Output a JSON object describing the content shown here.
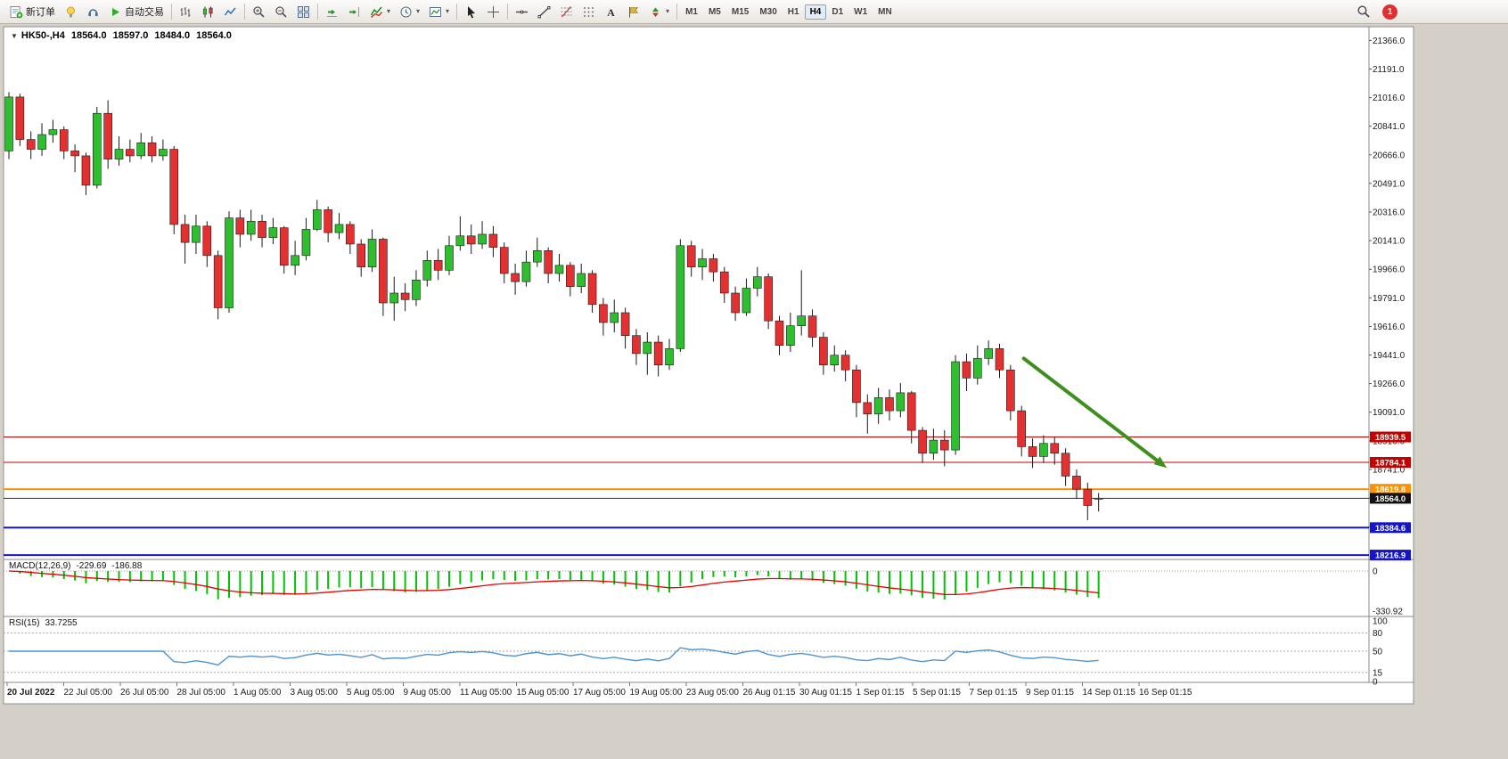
{
  "toolbar": {
    "new_order_label": "新订单",
    "autotrading_label": "自动交易",
    "caret": "▾",
    "timeframes": [
      "M1",
      "M5",
      "M15",
      "M30",
      "H1",
      "H4",
      "D1",
      "W1",
      "MN"
    ],
    "active_timeframe": "H4",
    "notification_count": "1"
  },
  "chart": {
    "collapse_glyph": "▼",
    "symbol_period": "HK50-,H4",
    "open": "18564.0",
    "high": "18597.0",
    "low": "18484.0",
    "close": "18564.0"
  },
  "colors": {
    "bull": "#2fbe2f",
    "bear": "#e33030",
    "wick": "#1a1a1a",
    "macd_bar": "#00c400",
    "macd_signal": "#e80000",
    "rsi_line": "#4f94cd",
    "arrow": "#3f8f1f",
    "axis_text": "#1a1a1a"
  },
  "chart_data": {
    "type": "candlestick",
    "title": "HK50-,H4",
    "price_axis": {
      "range": [
        18190,
        21450
      ],
      "ticks": [
        "21366.0",
        "21191.0",
        "21016.0",
        "20841.0",
        "20666.0",
        "20491.0",
        "20316.0",
        "20141.0",
        "19966.0",
        "19791.0",
        "19616.0",
        "19441.0",
        "19266.0",
        "19091.0",
        "18916.0",
        "18741.0",
        "18566.0",
        "18391.0"
      ]
    },
    "candles_ohlc": [
      [
        20690,
        21050,
        20640,
        21020
      ],
      [
        21020,
        21040,
        20720,
        20760
      ],
      [
        20760,
        20810,
        20640,
        20700
      ],
      [
        20700,
        20860,
        20660,
        20790
      ],
      [
        20790,
        20880,
        20740,
        20820
      ],
      [
        20820,
        20840,
        20640,
        20690
      ],
      [
        20690,
        20730,
        20560,
        20660
      ],
      [
        20660,
        20680,
        20420,
        20480
      ],
      [
        20480,
        20960,
        20460,
        20920
      ],
      [
        20920,
        21000,
        20580,
        20640
      ],
      [
        20640,
        20780,
        20600,
        20700
      ],
      [
        20700,
        20760,
        20620,
        20660
      ],
      [
        20660,
        20800,
        20640,
        20740
      ],
      [
        20740,
        20780,
        20620,
        20660
      ],
      [
        20660,
        20760,
        20630,
        20700
      ],
      [
        20700,
        20720,
        20180,
        20240
      ],
      [
        20240,
        20300,
        20000,
        20130
      ],
      [
        20130,
        20300,
        20060,
        20230
      ],
      [
        20230,
        20260,
        19980,
        20050
      ],
      [
        20050,
        20080,
        19660,
        19730
      ],
      [
        19730,
        20320,
        19700,
        20280
      ],
      [
        20280,
        20330,
        20100,
        20180
      ],
      [
        20180,
        20330,
        20140,
        20260
      ],
      [
        20260,
        20300,
        20100,
        20160
      ],
      [
        20160,
        20280,
        20120,
        20220
      ],
      [
        20220,
        20230,
        19940,
        19990
      ],
      [
        19990,
        20140,
        19930,
        20050
      ],
      [
        20050,
        20280,
        20020,
        20210
      ],
      [
        20210,
        20390,
        20200,
        20330
      ],
      [
        20330,
        20350,
        20130,
        20190
      ],
      [
        20190,
        20310,
        20150,
        20240
      ],
      [
        20240,
        20260,
        20060,
        20120
      ],
      [
        20120,
        20150,
        19920,
        19980
      ],
      [
        19980,
        20210,
        19950,
        20150
      ],
      [
        20150,
        20160,
        19680,
        19760
      ],
      [
        19760,
        19920,
        19650,
        19820
      ],
      [
        19820,
        19880,
        19710,
        19780
      ],
      [
        19780,
        19960,
        19740,
        19900
      ],
      [
        19900,
        20080,
        19860,
        20020
      ],
      [
        20020,
        20090,
        19900,
        19960
      ],
      [
        19960,
        20170,
        19930,
        20110
      ],
      [
        20110,
        20290,
        20080,
        20170
      ],
      [
        20170,
        20240,
        20060,
        20120
      ],
      [
        20120,
        20260,
        20090,
        20180
      ],
      [
        20180,
        20230,
        20040,
        20100
      ],
      [
        20100,
        20130,
        19880,
        19940
      ],
      [
        19940,
        20000,
        19810,
        19890
      ],
      [
        19890,
        20080,
        19860,
        20010
      ],
      [
        20010,
        20160,
        19980,
        20080
      ],
      [
        20080,
        20100,
        19880,
        19940
      ],
      [
        19940,
        20060,
        19890,
        19990
      ],
      [
        19990,
        20010,
        19800,
        19860
      ],
      [
        19860,
        20000,
        19820,
        19940
      ],
      [
        19940,
        19960,
        19700,
        19750
      ],
      [
        19750,
        19790,
        19560,
        19640
      ],
      [
        19640,
        19780,
        19580,
        19700
      ],
      [
        19700,
        19730,
        19480,
        19560
      ],
      [
        19560,
        19600,
        19380,
        19450
      ],
      [
        19450,
        19580,
        19320,
        19520
      ],
      [
        19520,
        19560,
        19310,
        19380
      ],
      [
        19380,
        19540,
        19350,
        19480
      ],
      [
        19480,
        20150,
        19460,
        20110
      ],
      [
        20110,
        20140,
        19920,
        19980
      ],
      [
        19980,
        20090,
        19900,
        20030
      ],
      [
        20030,
        20060,
        19890,
        19950
      ],
      [
        19950,
        19980,
        19760,
        19820
      ],
      [
        19820,
        19860,
        19650,
        19700
      ],
      [
        19700,
        19910,
        19680,
        19850
      ],
      [
        19850,
        19980,
        19800,
        19920
      ],
      [
        19920,
        19940,
        19600,
        19650
      ],
      [
        19650,
        19680,
        19440,
        19500
      ],
      [
        19500,
        19700,
        19460,
        19620
      ],
      [
        19620,
        19960,
        19560,
        19680
      ],
      [
        19680,
        19720,
        19490,
        19550
      ],
      [
        19550,
        19580,
        19320,
        19380
      ],
      [
        19380,
        19500,
        19340,
        19440
      ],
      [
        19440,
        19470,
        19280,
        19350
      ],
      [
        19350,
        19380,
        19060,
        19150
      ],
      [
        19150,
        19200,
        18960,
        19080
      ],
      [
        19080,
        19240,
        19020,
        19180
      ],
      [
        19180,
        19230,
        19040,
        19100
      ],
      [
        19100,
        19270,
        19060,
        19210
      ],
      [
        19210,
        19220,
        18900,
        18980
      ],
      [
        18980,
        19000,
        18780,
        18840
      ],
      [
        18840,
        18990,
        18800,
        18920
      ],
      [
        18920,
        18980,
        18760,
        18860
      ],
      [
        18860,
        19440,
        18830,
        19400
      ],
      [
        19400,
        19450,
        19220,
        19300
      ],
      [
        19300,
        19500,
        19260,
        19420
      ],
      [
        19420,
        19530,
        19380,
        19480
      ],
      [
        19480,
        19510,
        19300,
        19350
      ],
      [
        19350,
        19380,
        19040,
        19100
      ],
      [
        19100,
        19130,
        18820,
        18880
      ],
      [
        18880,
        18930,
        18750,
        18820
      ],
      [
        18820,
        18950,
        18780,
        18900
      ],
      [
        18900,
        18940,
        18770,
        18840
      ],
      [
        18840,
        18870,
        18640,
        18700
      ],
      [
        18700,
        18740,
        18560,
        18620
      ],
      [
        18620,
        18660,
        18430,
        18520
      ],
      [
        18564,
        18597,
        18484,
        18564
      ]
    ],
    "time_labels": [
      "20 Jul 2022",
      "22 Jul 05:00",
      "26 Jul 05:00",
      "28 Jul 05:00",
      "1 Aug 05:00",
      "3 Aug 05:00",
      "5 Aug 05:00",
      "9 Aug 05:00",
      "11 Aug 05:00",
      "15 Aug 05:00",
      "17 Aug 05:00",
      "19 Aug 05:00",
      "23 Aug 05:00",
      "26 Aug 01:15",
      "30 Aug 01:15",
      "1 Sep 01:15",
      "5 Sep 01:15",
      "7 Sep 01:15",
      "9 Sep 01:15",
      "14 Sep 01:15",
      "16 Sep 01:15"
    ],
    "levels": [
      {
        "price": 18939.5,
        "label": "18939.5",
        "color": "#c40000",
        "width": 1
      },
      {
        "price": 18784.1,
        "label": "18784.1",
        "color": "#c40000",
        "width": 1
      },
      {
        "price": 18619.8,
        "label": "18619.8",
        "color": "#ff9100",
        "width": 2
      },
      {
        "price": 18384.6,
        "label": "18384.6",
        "color": "#1414cc",
        "width": 2
      },
      {
        "price": 18216.9,
        "label": "18216.9",
        "color": "#1414cc",
        "width": 2
      }
    ],
    "current_price": {
      "price": 18564.0,
      "label": "18564.0",
      "line_color": "#333333",
      "badge_color": "#111111"
    },
    "arrow": {
      "from_bar": 92.2,
      "from_price": 19420,
      "to_bar": 105.2,
      "to_price": 18750
    },
    "macd": {
      "label": "MACD(12,26,9)",
      "value": "-229.69",
      "signal": "-186.88",
      "params": [
        12,
        26,
        9
      ],
      "axis_labels": [
        "0",
        "-330.92"
      ],
      "range": [
        -330.92,
        0
      ]
    },
    "rsi": {
      "label": "RSI(15)",
      "value": "33.7255",
      "period": 15,
      "axis_labels": [
        "100",
        "80",
        "50",
        "15",
        "0"
      ],
      "levels": [
        80,
        50,
        15
      ],
      "range": [
        0,
        100
      ]
    }
  }
}
